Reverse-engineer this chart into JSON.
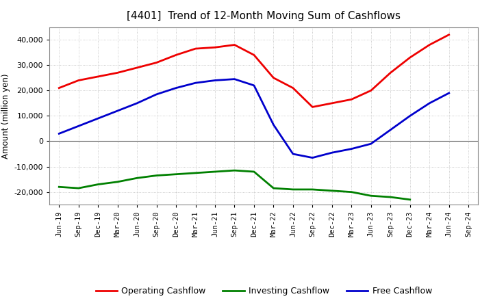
{
  "title": "[4401]  Trend of 12-Month Moving Sum of Cashflows",
  "ylabel": "Amount (million yen)",
  "xlabels": [
    "Jun-19",
    "Sep-19",
    "Dec-19",
    "Mar-20",
    "Jun-20",
    "Sep-20",
    "Dec-20",
    "Mar-21",
    "Jun-21",
    "Sep-21",
    "Dec-21",
    "Mar-22",
    "Jun-22",
    "Sep-22",
    "Dec-22",
    "Mar-23",
    "Jun-23",
    "Sep-23",
    "Dec-23",
    "Mar-24",
    "Jun-24",
    "Sep-24"
  ],
  "operating": [
    21000,
    24000,
    25500,
    27000,
    29000,
    31000,
    34000,
    36500,
    37000,
    38000,
    34000,
    25000,
    21000,
    13500,
    15000,
    16500,
    20000,
    27000,
    33000,
    38000,
    42000,
    null
  ],
  "investing": [
    -18000,
    -18500,
    -17000,
    -16000,
    -14500,
    -13500,
    -13000,
    -12500,
    -12000,
    -11500,
    -12000,
    -18500,
    -19000,
    -19000,
    -19500,
    -20000,
    -21500,
    -22000,
    -23000,
    null,
    null,
    null
  ],
  "free": [
    3000,
    6000,
    9000,
    12000,
    15000,
    18500,
    21000,
    23000,
    24000,
    24500,
    22000,
    6500,
    -5000,
    -6500,
    -4500,
    -3000,
    -1000,
    4500,
    10000,
    15000,
    19000,
    null
  ],
  "operating_color": "#EE0000",
  "investing_color": "#008000",
  "free_color": "#0000CC",
  "ylim": [
    -25000,
    45000
  ],
  "yticks": [
    -20000,
    -10000,
    0,
    10000,
    20000,
    30000,
    40000
  ],
  "background_color": "#FFFFFF",
  "grid_color": "#BBBBBB",
  "line_width": 2.0,
  "title_fontsize": 11,
  "legend_fontsize": 9,
  "ylabel_fontsize": 8.5,
  "xlabel_fontsize": 7.5,
  "ylabel_fontsize_tick": 8
}
